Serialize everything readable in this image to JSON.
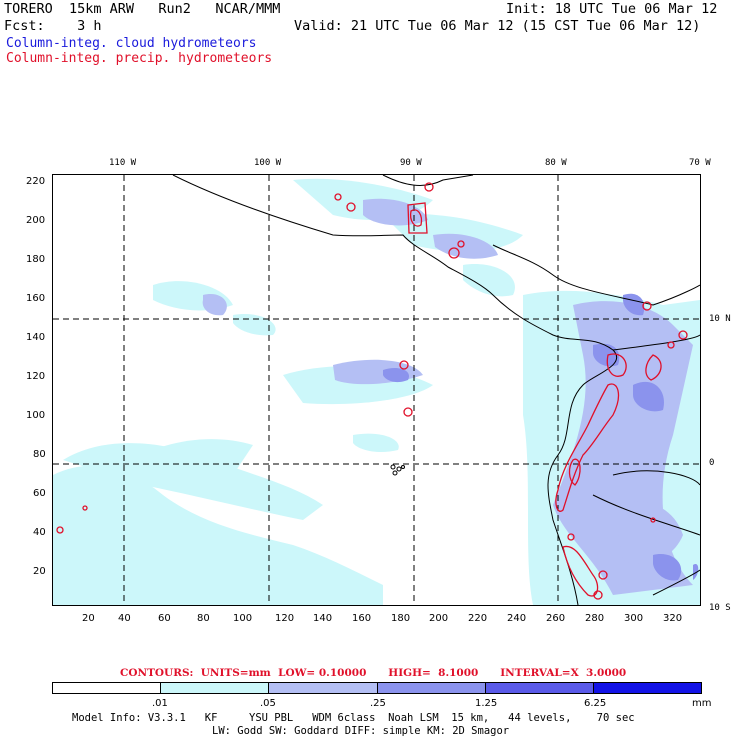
{
  "header": {
    "model": "TORERO  15km ARW   Run2   NCAR/MMM",
    "init": "Init: 18 UTC Tue 06 Mar 12",
    "fcst": "Fcst:    3 h",
    "valid": "Valid: 21 UTC Tue 06 Mar 12 (15 CST Tue 06 Mar 12)",
    "legend_cloud": "Column-integ. cloud hydrometeors",
    "legend_precip": "Column-integ. precip. hydrometeors"
  },
  "top_lon_labels": [
    "110 W",
    "100 W",
    "90 W",
    "80 W",
    "70 W"
  ],
  "right_lat_labels": [
    "10 N",
    "0",
    "10 S"
  ],
  "y_ticks": [
    "220",
    "200",
    "180",
    "160",
    "140",
    "120",
    "100",
    "80",
    "60",
    "40",
    "20"
  ],
  "x_ticks": [
    "20",
    "40",
    "60",
    "80",
    "100",
    "120",
    "140",
    "160",
    "180",
    "200",
    "220",
    "240",
    "260",
    "280",
    "300",
    "320"
  ],
  "contours_line": "CONTOURS:  UNITS=mm  LOW= 0.10000      HIGH=  8.1000      INTERVAL=X  3.0000",
  "colorbar": {
    "colors": [
      "#ffffff",
      "#ccf7fa",
      "#b4bff4",
      "#8b93ed",
      "#5a5ae8",
      "#1212e6"
    ],
    "labels": [
      ".01",
      ".05",
      ".25",
      "1.25",
      "6.25"
    ],
    "unit": "mm"
  },
  "footer": {
    "line1": "Model Info: V3.3.1   KF     YSU PBL   WDM 6class  Noah LSM  15 km,   44 levels,    70 sec",
    "line2": "LW: Godd SW: Goddard DIFF: simple KM: 2D Smagor"
  },
  "colors": {
    "cloud_light": "#ccf7fa",
    "cloud_mid": "#b4bff4",
    "cloud_dark": "#8b93ed",
    "precip": "#e0102a"
  }
}
